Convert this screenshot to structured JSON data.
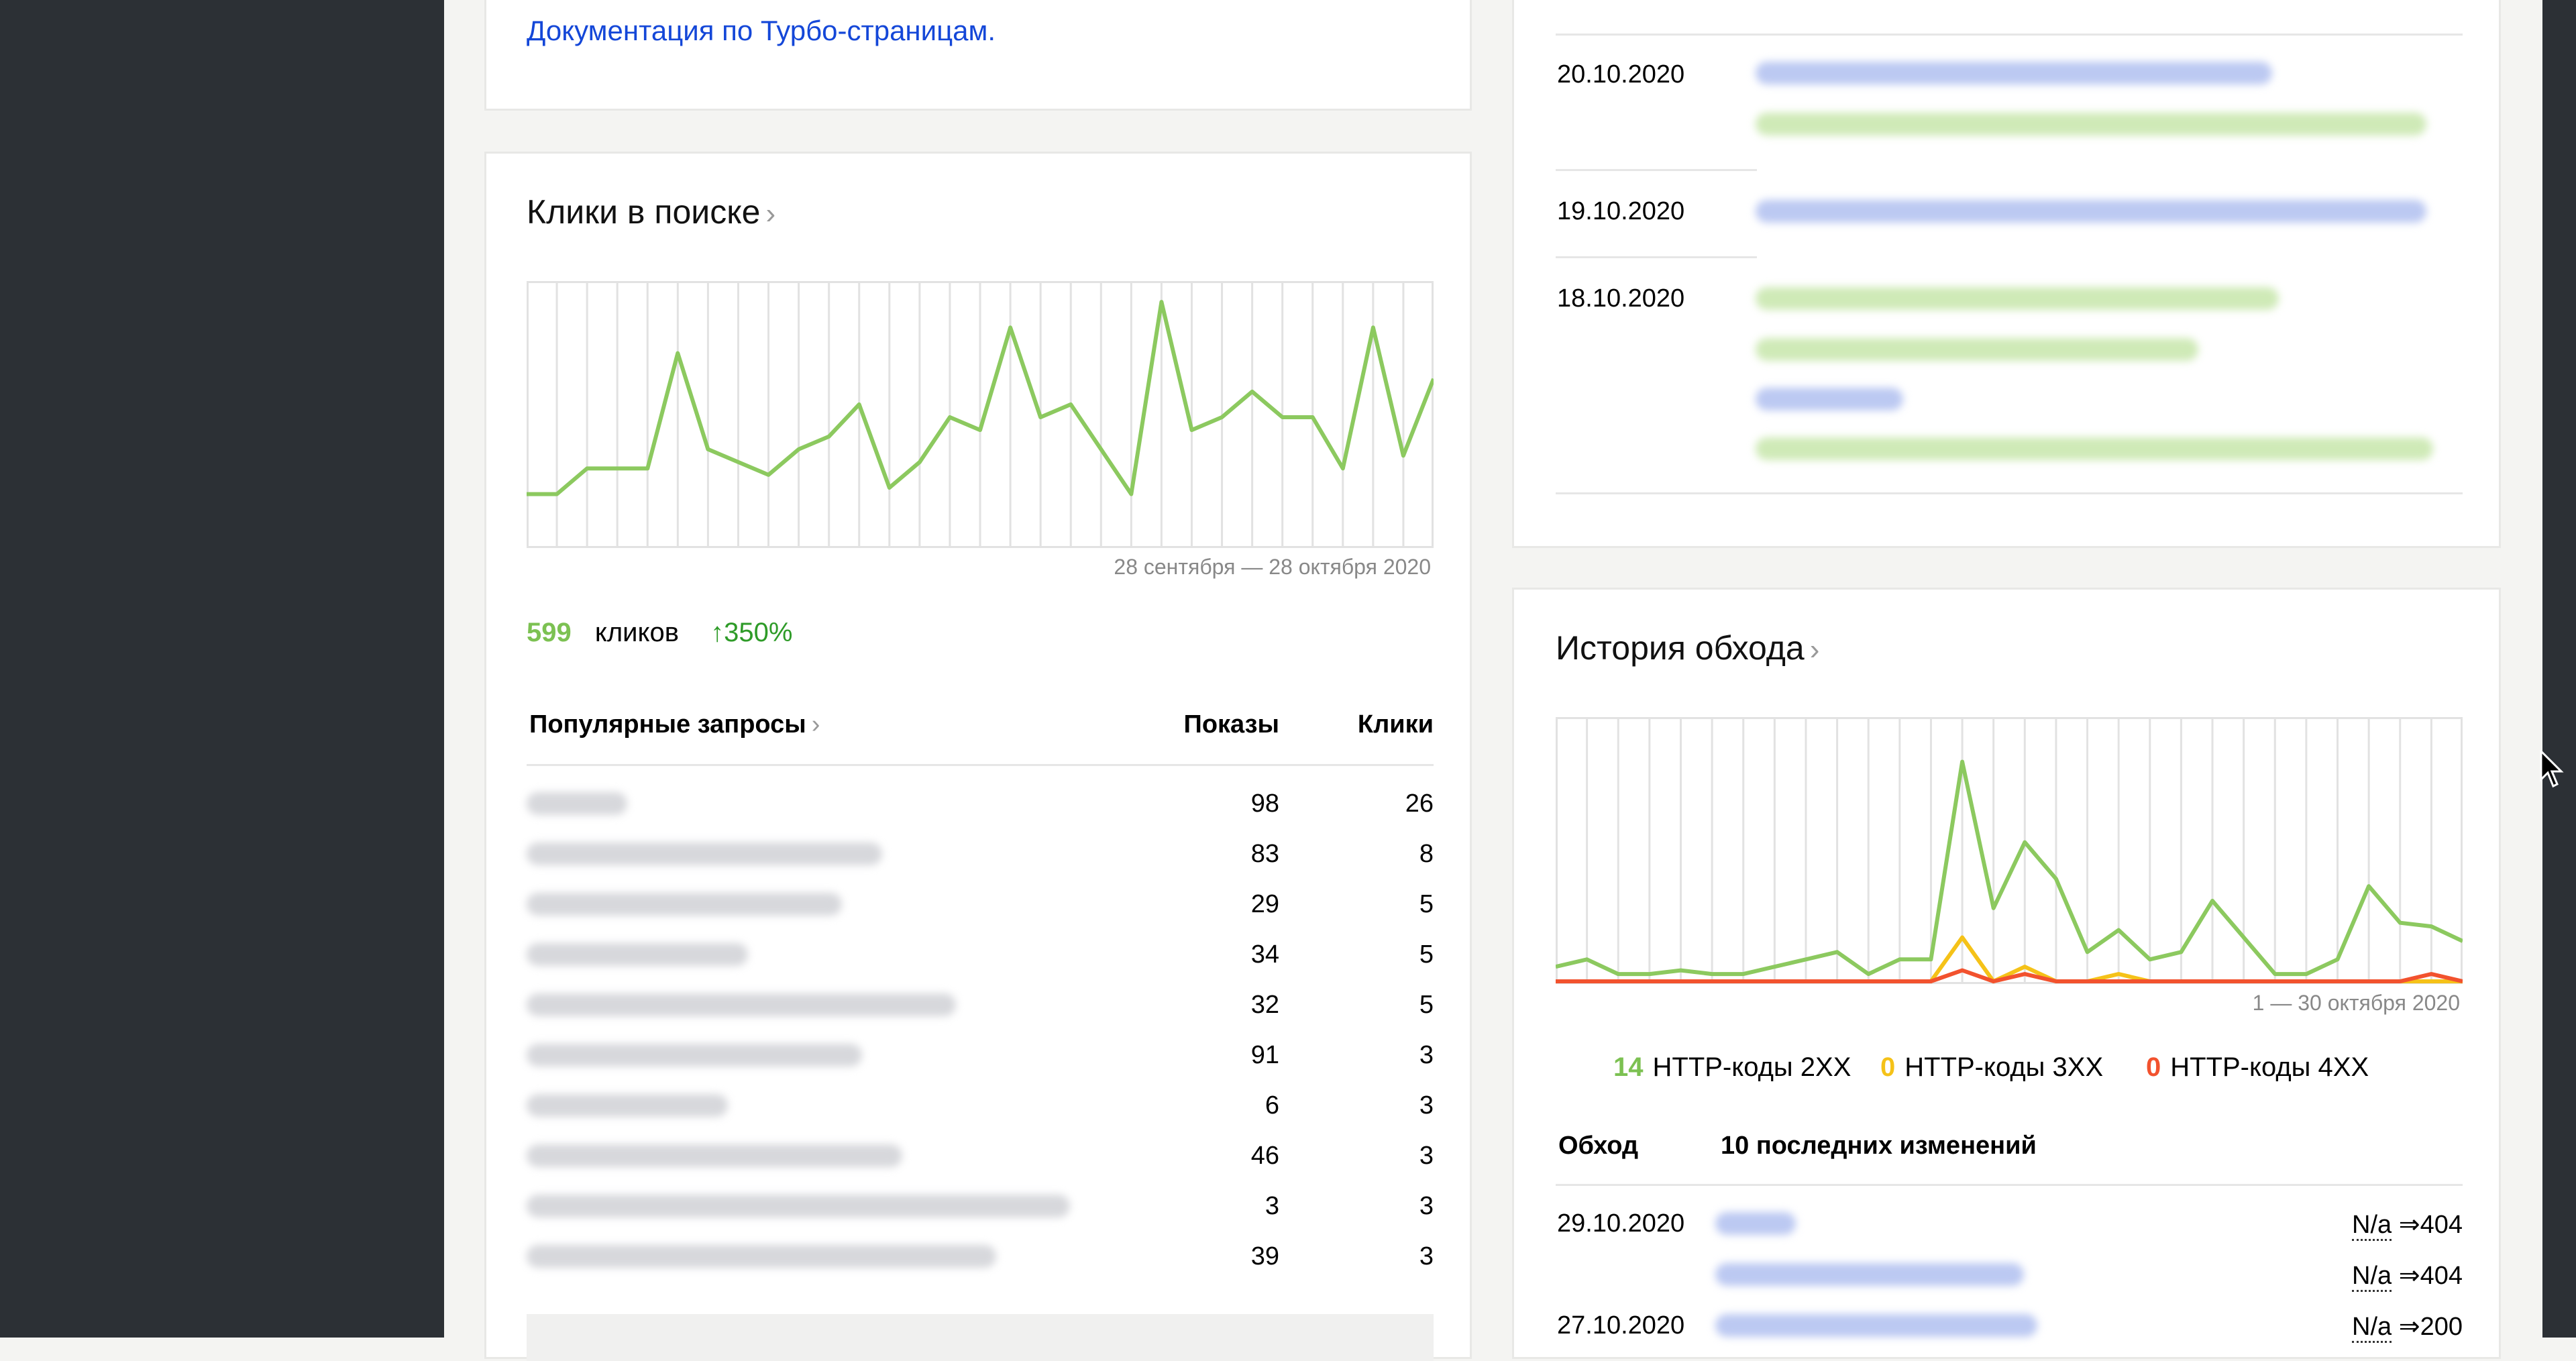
{
  "turbo_card": {
    "doc_link": "Документация по Турбо-страницам."
  },
  "clicks": {
    "title": "Клики в поиске",
    "chevron": "›",
    "period": "28 сентября — 28 октября 2020",
    "total": "599",
    "unit": "кликов",
    "growth": "↑350%",
    "table": {
      "headers": {
        "query": "Популярные запросы",
        "shows": "Показы",
        "clicks": "Клики"
      },
      "rows": [
        {
          "shows": "98",
          "clicks": "26"
        },
        {
          "shows": "83",
          "clicks": "8"
        },
        {
          "shows": "29",
          "clicks": "5"
        },
        {
          "shows": "34",
          "clicks": "5"
        },
        {
          "shows": "32",
          "clicks": "5"
        },
        {
          "shows": "91",
          "clicks": "3"
        },
        {
          "shows": "6",
          "clicks": "3"
        },
        {
          "shows": "46",
          "clicks": "3"
        },
        {
          "shows": "3",
          "clicks": "3"
        },
        {
          "shows": "39",
          "clicks": "3"
        }
      ]
    }
  },
  "changes": {
    "dates": [
      "20.10.2020",
      "19.10.2020",
      "18.10.2020"
    ]
  },
  "crawl": {
    "title": "История обхода",
    "chevron": "›",
    "period": "1 — 30 октября 2020",
    "legend": [
      {
        "value": "14",
        "label": "HTTP-коды 2XX",
        "color": "#8cc95f"
      },
      {
        "value": "0",
        "label": "HTTP-коды 3XX",
        "color": "#f5c218"
      },
      {
        "value": "0",
        "label": "HTTP-коды 4XX",
        "color": "#f2522e"
      }
    ],
    "table": {
      "headers": {
        "crawl": "Обход",
        "changes": "10 последних изменений"
      },
      "rows": [
        {
          "date": "29.10.2020",
          "from": "N/a",
          "arrow": "⇒",
          "to": "404"
        },
        {
          "date": "",
          "from": "N/a",
          "arrow": "⇒",
          "to": "404"
        },
        {
          "date": "27.10.2020",
          "from": "N/a",
          "arrow": "⇒",
          "to": "200"
        }
      ]
    }
  },
  "chart_data": [
    {
      "type": "line",
      "x_count": 31,
      "series": [
        {
          "values": [
            4,
            4,
            6,
            6,
            6,
            15,
            7.5,
            6.5,
            5.5,
            7.5,
            8.5,
            11,
            4.5,
            6.5,
            10,
            9,
            17,
            10,
            11,
            7.5,
            4,
            19,
            9,
            10,
            12,
            10,
            10,
            6,
            17,
            7,
            13
          ],
          "color": "#8cc95f"
        }
      ],
      "ylim": [
        0,
        20
      ],
      "grid": true
    },
    {
      "type": "line",
      "x_count": 30,
      "series": [
        {
          "values": [
            2,
            3,
            1,
            1,
            1.5,
            1,
            1,
            2,
            3,
            4,
            1,
            3,
            3,
            30,
            10,
            19,
            14,
            4,
            7,
            3,
            4,
            11,
            6,
            1,
            1,
            3,
            13,
            8,
            7.5,
            5.5
          ],
          "color": "#8cc95f"
        },
        {
          "values": [
            0,
            0,
            0,
            0,
            0,
            0,
            0,
            0,
            0,
            0,
            0,
            0,
            0,
            6,
            0,
            2,
            0,
            0,
            1,
            0,
            0,
            0,
            0,
            0,
            0,
            0,
            0,
            0,
            0,
            0
          ],
          "color": "#f5c218"
        },
        {
          "values": [
            0,
            0,
            0,
            0,
            0,
            0,
            0,
            0,
            0,
            0,
            0,
            0,
            0,
            1.5,
            0,
            1,
            0,
            0,
            0,
            0,
            0,
            0,
            0,
            0,
            0,
            0,
            0,
            0,
            1,
            0
          ],
          "color": "#f2522e"
        }
      ],
      "ylim": [
        0,
        35
      ],
      "grid": true
    }
  ]
}
